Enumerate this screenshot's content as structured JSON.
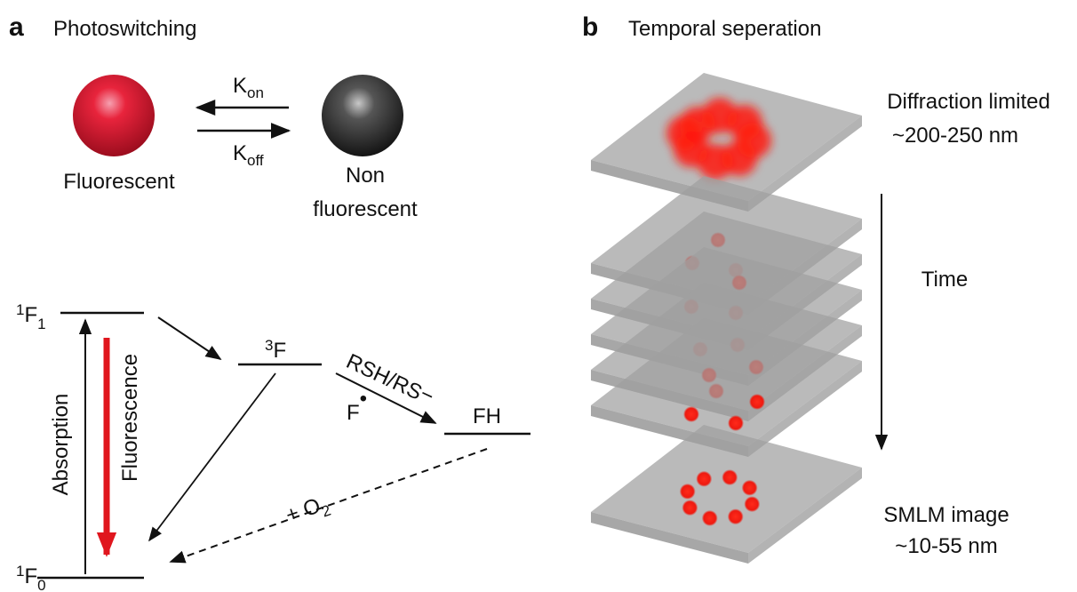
{
  "panel_a": {
    "letter": "a",
    "title": "Photoswitching",
    "k_on": {
      "base": "K",
      "sub": "on"
    },
    "k_off": {
      "base": "K",
      "sub": "off"
    },
    "fluorescent": "Fluorescent",
    "non_fluorescent": [
      "Non",
      "fluorescent"
    ],
    "levels": {
      "f1": {
        "sup": "1",
        "base": "F",
        "sub": "1"
      },
      "f0": {
        "sup": "1",
        "base": "F",
        "sub": "0"
      },
      "triplet": {
        "sup": "3",
        "base": "F"
      },
      "fh": "FH"
    },
    "absorption": "Absorption",
    "fluorescence": "Fluorescence",
    "thiol": {
      "base": "RSH/RS",
      "sup": "−"
    },
    "radical": {
      "base": "F",
      "sup": "•"
    },
    "oxygen": {
      "base": "+ O",
      "sub": "2"
    }
  },
  "panel_b": {
    "letter": "b",
    "title": "Temporal seperation",
    "top_label": [
      "Diffraction limited",
      "~200-250 nm"
    ],
    "time": "Time",
    "bottom_label": [
      "SMLM image",
      "~10-55 nm"
    ]
  }
}
